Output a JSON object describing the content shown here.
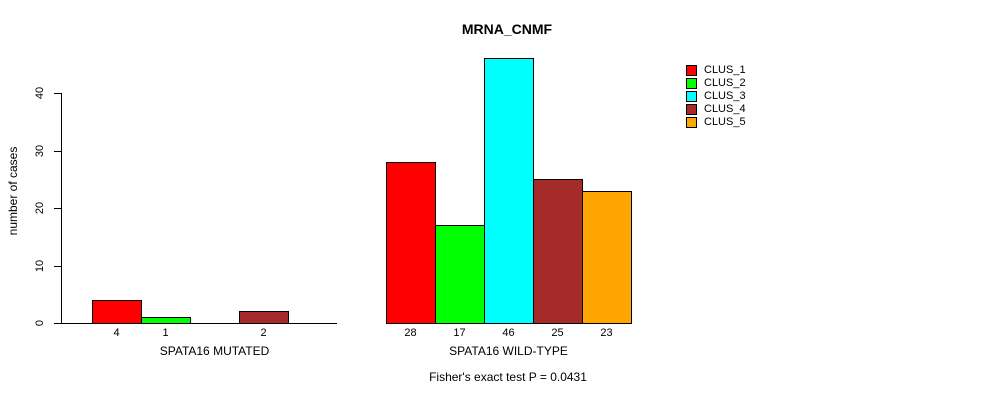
{
  "chart_data": {
    "type": "bar",
    "title": "MRNA_CNMF",
    "ylabel": "number of cases",
    "xlabel": "",
    "ylim": [
      0,
      46
    ],
    "yticks": [
      0,
      10,
      20,
      30,
      40
    ],
    "grid": false,
    "legend_position": "right-inside",
    "categories": [
      "SPATA16 MUTATED",
      "SPATA16 WILD-TYPE"
    ],
    "groups": [
      {
        "label": "SPATA16 MUTATED",
        "values": [
          4,
          1,
          0,
          2,
          0
        ]
      },
      {
        "label": "SPATA16 WILD-TYPE",
        "values": [
          28,
          17,
          46,
          25,
          23
        ]
      }
    ],
    "series": [
      {
        "name": "CLUS_1",
        "color": "#FF0000",
        "values": [
          4,
          28
        ]
      },
      {
        "name": "CLUS_2",
        "color": "#00FF00",
        "values": [
          1,
          17
        ]
      },
      {
        "name": "CLUS_3",
        "color": "#00FFFF",
        "values": [
          0,
          46
        ]
      },
      {
        "name": "CLUS_4",
        "color": "#A52A2A",
        "values": [
          2,
          25
        ]
      },
      {
        "name": "CLUS_5",
        "color": "#FFA500",
        "values": [
          0,
          23
        ]
      }
    ],
    "legend": [
      {
        "label": "CLUS_1",
        "color": "#FF0000"
      },
      {
        "label": "CLUS_2",
        "color": "#00FF00"
      },
      {
        "label": "CLUS_3",
        "color": "#00FFFF"
      },
      {
        "label": "CLUS_4",
        "color": "#A52A2A"
      },
      {
        "label": "CLUS_5",
        "color": "#FFA500"
      }
    ],
    "note": "Fisher's exact test P = 0.0431",
    "colors": {
      "axis": "#000000",
      "text": "#000000",
      "background": "#FFFFFF"
    }
  }
}
